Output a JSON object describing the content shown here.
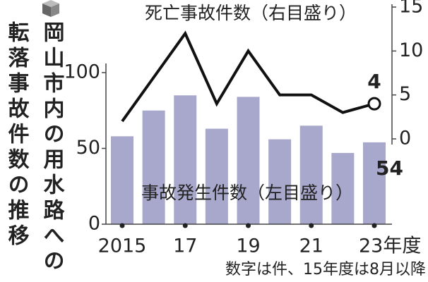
{
  "chart_data": {
    "type": "bar_line",
    "title": [
      "岡山市内の用水路への",
      "転落事故件数の推移"
    ],
    "categories": [
      "2015",
      null,
      "17",
      null,
      "19",
      null,
      "21",
      null,
      "23年度"
    ],
    "series": [
      {
        "name": "事故発生件数（左目盛り）",
        "type": "bar",
        "color": "#a7a8cb",
        "values": [
          58,
          75,
          85,
          63,
          84,
          56,
          65,
          47,
          54
        ]
      },
      {
        "name": "死亡事故件数（右目盛り）",
        "type": "line",
        "axis": "y2",
        "color": "#111111",
        "values": [
          2,
          7,
          12,
          4,
          10,
          5,
          5,
          3,
          4
        ]
      }
    ],
    "ylim": [
      0,
      100
    ],
    "yticks": [
      0,
      50,
      100
    ],
    "y2lim": [
      0,
      15
    ],
    "y2ticks": [
      0,
      5,
      10,
      15
    ],
    "note": "数字は件、15年度は8月以降"
  }
}
